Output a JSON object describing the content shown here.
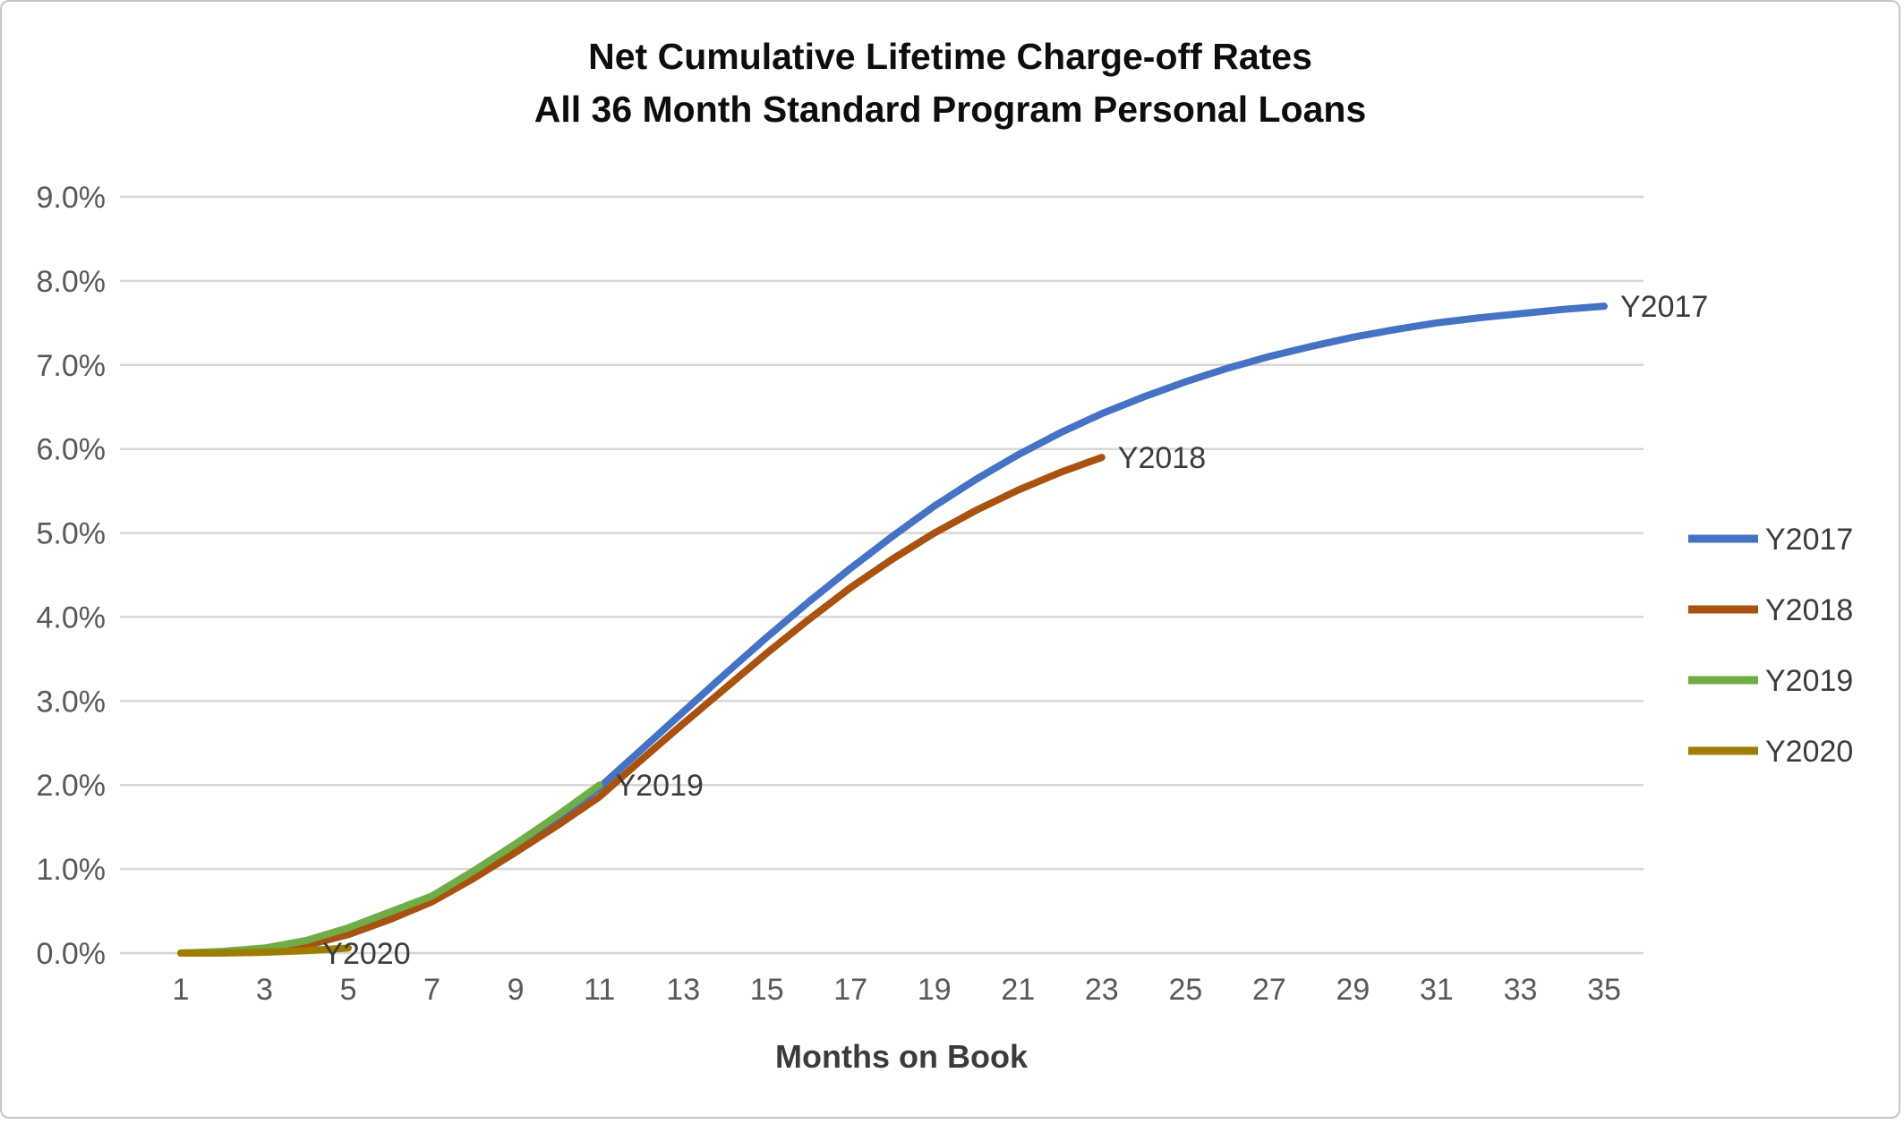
{
  "title": {
    "line1": "Net Cumulative Lifetime Charge-off Rates",
    "line2": "All 36 Month Standard Program Personal Loans"
  },
  "chart_data": {
    "type": "line",
    "title": "Net Cumulative Lifetime Charge-off Rates",
    "subtitle": "All 36 Month Standard Program Personal Loans",
    "xlabel": "Months on Book",
    "ylabel": "",
    "xlim": [
      1,
      35
    ],
    "ylim": [
      0,
      9
    ],
    "grid": "horizontal",
    "legend_position": "right",
    "x_ticks": [
      1,
      3,
      5,
      7,
      9,
      11,
      13,
      15,
      17,
      19,
      21,
      23,
      25,
      27,
      29,
      31,
      33,
      35
    ],
    "y_ticks": [
      0,
      1,
      2,
      3,
      4,
      5,
      6,
      7,
      8,
      9
    ],
    "y_tick_labels": [
      "0.0%",
      "1.0%",
      "2.0%",
      "3.0%",
      "4.0%",
      "5.0%",
      "6.0%",
      "7.0%",
      "8.0%",
      "9.0%"
    ],
    "series": [
      {
        "name": "Y2017",
        "color": "#4472C4",
        "x": [
          1,
          2,
          3,
          4,
          5,
          6,
          7,
          8,
          9,
          10,
          11,
          12,
          13,
          14,
          15,
          16,
          17,
          18,
          19,
          20,
          21,
          22,
          23,
          24,
          25,
          26,
          27,
          28,
          29,
          30,
          31,
          32,
          33,
          34,
          35
        ],
        "values": [
          0.0,
          0.01,
          0.03,
          0.09,
          0.22,
          0.4,
          0.62,
          0.92,
          1.25,
          1.6,
          1.97,
          2.42,
          2.87,
          3.32,
          3.76,
          4.18,
          4.58,
          4.96,
          5.32,
          5.64,
          5.93,
          6.19,
          6.42,
          6.62,
          6.8,
          6.96,
          7.1,
          7.22,
          7.33,
          7.42,
          7.5,
          7.56,
          7.61,
          7.66,
          7.7
        ],
        "end_label": {
          "text": "Y2017",
          "month": 35,
          "value": 7.7
        }
      },
      {
        "name": "Y2018",
        "color": "#A9520F",
        "x": [
          1,
          2,
          3,
          4,
          5,
          6,
          7,
          8,
          9,
          10,
          11,
          12,
          13,
          14,
          15,
          16,
          17,
          18,
          19,
          20,
          21,
          22,
          23
        ],
        "values": [
          0.0,
          0.01,
          0.04,
          0.1,
          0.22,
          0.4,
          0.61,
          0.89,
          1.2,
          1.52,
          1.86,
          2.3,
          2.73,
          3.15,
          3.57,
          3.97,
          4.35,
          4.69,
          5.0,
          5.27,
          5.51,
          5.72,
          5.9
        ],
        "end_label": {
          "text": "Y2018",
          "month": 23,
          "value": 5.9
        }
      },
      {
        "name": "Y2019",
        "color": "#70AD47",
        "x": [
          1,
          2,
          3,
          4,
          5,
          6,
          7,
          8,
          9,
          10,
          11
        ],
        "values": [
          0.0,
          0.02,
          0.06,
          0.15,
          0.3,
          0.49,
          0.68,
          0.98,
          1.3,
          1.64,
          2.0
        ],
        "end_label": {
          "text": "Y2019",
          "month": 11,
          "value": 2.0
        }
      },
      {
        "name": "Y2020",
        "color": "#9E7C00",
        "x": [
          1,
          2,
          3,
          4,
          5
        ],
        "values": [
          0.0,
          0.0,
          0.01,
          0.03,
          0.06
        ],
        "end_label": {
          "text": "Y2020",
          "month": 4,
          "value": 0.0
        }
      }
    ]
  }
}
